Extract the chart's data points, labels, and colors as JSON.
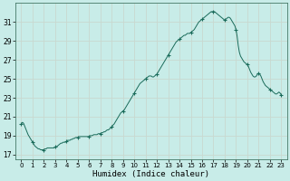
{
  "title": "",
  "xlabel": "Humidex (Indice chaleur)",
  "ylabel": "",
  "background_color": "#c8ece8",
  "grid_color": "#c8d8d0",
  "line_color": "#1a6b5a",
  "marker_color": "#1a6b5a",
  "xlim": [
    -0.5,
    23.5
  ],
  "ylim": [
    16.5,
    33.0
  ],
  "yticks": [
    17,
    19,
    21,
    23,
    25,
    27,
    29,
    31
  ],
  "xticks": [
    0,
    1,
    2,
    3,
    4,
    5,
    6,
    7,
    8,
    9,
    10,
    11,
    12,
    13,
    14,
    15,
    16,
    17,
    18,
    19,
    20,
    21,
    22,
    23
  ],
  "x": [
    0.0,
    0.1,
    0.2,
    0.3,
    0.4,
    0.5,
    0.6,
    0.7,
    0.8,
    0.9,
    1.0,
    1.1,
    1.2,
    1.3,
    1.4,
    1.5,
    1.6,
    1.7,
    1.8,
    1.9,
    2.0,
    2.1,
    2.2,
    2.3,
    2.4,
    2.5,
    2.6,
    2.7,
    2.8,
    2.9,
    3.0,
    3.1,
    3.2,
    3.3,
    3.4,
    3.5,
    3.6,
    3.7,
    3.8,
    3.9,
    4.0,
    4.1,
    4.2,
    4.3,
    4.4,
    4.5,
    4.6,
    4.7,
    4.8,
    4.9,
    5.0,
    5.1,
    5.2,
    5.3,
    5.4,
    5.5,
    5.6,
    5.7,
    5.8,
    5.9,
    6.0,
    6.1,
    6.2,
    6.3,
    6.4,
    6.5,
    6.6,
    6.7,
    6.8,
    6.9,
    7.0,
    7.1,
    7.2,
    7.3,
    7.4,
    7.5,
    7.6,
    7.7,
    7.8,
    7.9,
    8.0,
    8.1,
    8.2,
    8.3,
    8.4,
    8.5,
    8.6,
    8.7,
    8.8,
    8.9,
    9.0,
    9.1,
    9.2,
    9.3,
    9.4,
    9.5,
    9.6,
    9.7,
    9.8,
    9.9,
    10.0,
    10.1,
    10.2,
    10.3,
    10.4,
    10.5,
    10.6,
    10.7,
    10.8,
    10.9,
    11.0,
    11.1,
    11.2,
    11.3,
    11.4,
    11.5,
    11.6,
    11.7,
    11.8,
    11.9,
    12.0,
    12.1,
    12.2,
    12.3,
    12.4,
    12.5,
    12.6,
    12.7,
    12.8,
    12.9,
    13.0,
    13.1,
    13.2,
    13.3,
    13.4,
    13.5,
    13.6,
    13.7,
    13.8,
    13.9,
    14.0,
    14.1,
    14.2,
    14.3,
    14.4,
    14.5,
    14.6,
    14.7,
    14.8,
    14.9,
    15.0,
    15.1,
    15.2,
    15.3,
    15.4,
    15.5,
    15.6,
    15.7,
    15.8,
    15.9,
    16.0,
    16.1,
    16.2,
    16.3,
    16.4,
    16.5,
    16.6,
    16.7,
    16.8,
    16.9,
    17.0,
    17.1,
    17.2,
    17.3,
    17.4,
    17.5,
    17.6,
    17.7,
    17.8,
    17.9,
    18.0,
    18.1,
    18.2,
    18.3,
    18.4,
    18.5,
    18.6,
    18.7,
    18.8,
    18.9,
    19.0,
    19.1,
    19.2,
    19.3,
    19.4,
    19.5,
    19.6,
    19.7,
    19.8,
    19.9,
    20.0,
    20.1,
    20.2,
    20.3,
    20.4,
    20.5,
    20.6,
    20.7,
    20.8,
    20.9,
    21.0,
    21.1,
    21.2,
    21.3,
    21.4,
    21.5,
    21.6,
    21.7,
    21.8,
    21.9,
    22.0,
    22.1,
    22.2,
    22.3,
    22.4,
    22.5,
    22.6,
    22.7,
    22.8,
    22.9,
    23.0
  ],
  "y": [
    20.2,
    20.4,
    20.3,
    20.0,
    19.7,
    19.4,
    19.1,
    18.9,
    18.7,
    18.5,
    18.3,
    18.1,
    17.9,
    17.8,
    17.7,
    17.6,
    17.6,
    17.5,
    17.5,
    17.5,
    17.5,
    17.6,
    17.6,
    17.7,
    17.7,
    17.7,
    17.7,
    17.7,
    17.7,
    17.7,
    17.8,
    17.8,
    17.9,
    18.0,
    18.1,
    18.2,
    18.2,
    18.3,
    18.3,
    18.3,
    18.4,
    18.5,
    18.5,
    18.5,
    18.6,
    18.6,
    18.7,
    18.7,
    18.8,
    18.8,
    18.8,
    18.9,
    18.9,
    18.9,
    18.9,
    18.9,
    18.9,
    18.9,
    18.9,
    18.9,
    18.9,
    19.0,
    19.0,
    19.0,
    19.1,
    19.1,
    19.1,
    19.1,
    19.2,
    19.2,
    19.2,
    19.3,
    19.3,
    19.4,
    19.4,
    19.5,
    19.6,
    19.6,
    19.7,
    19.8,
    19.9,
    20.1,
    20.2,
    20.4,
    20.6,
    20.8,
    21.0,
    21.2,
    21.4,
    21.5,
    21.6,
    21.7,
    21.9,
    22.1,
    22.3,
    22.5,
    22.7,
    22.9,
    23.1,
    23.3,
    23.5,
    23.7,
    23.9,
    24.1,
    24.3,
    24.5,
    24.6,
    24.7,
    24.8,
    24.9,
    25.0,
    25.1,
    25.2,
    25.3,
    25.3,
    25.3,
    25.2,
    25.2,
    25.3,
    25.4,
    25.5,
    25.7,
    25.9,
    26.1,
    26.3,
    26.5,
    26.7,
    26.9,
    27.1,
    27.3,
    27.5,
    27.7,
    27.9,
    28.1,
    28.3,
    28.5,
    28.7,
    28.9,
    29.0,
    29.1,
    29.2,
    29.3,
    29.4,
    29.5,
    29.6,
    29.6,
    29.7,
    29.8,
    29.8,
    29.8,
    29.9,
    30.0,
    30.1,
    30.2,
    30.4,
    30.6,
    30.8,
    31.0,
    31.1,
    31.2,
    31.3,
    31.4,
    31.5,
    31.6,
    31.7,
    31.8,
    31.9,
    32.0,
    32.1,
    32.1,
    32.1,
    32.1,
    32.0,
    31.9,
    31.8,
    31.7,
    31.6,
    31.5,
    31.4,
    31.3,
    31.2,
    31.3,
    31.4,
    31.5,
    31.5,
    31.4,
    31.2,
    31.0,
    30.8,
    30.6,
    30.2,
    29.5,
    28.5,
    27.8,
    27.4,
    27.2,
    27.0,
    26.8,
    26.7,
    26.6,
    26.5,
    26.3,
    26.0,
    25.7,
    25.5,
    25.3,
    25.2,
    25.2,
    25.3,
    25.5,
    25.6,
    25.5,
    25.3,
    25.0,
    24.7,
    24.5,
    24.3,
    24.2,
    24.1,
    24.0,
    23.9,
    23.8,
    23.7,
    23.6,
    23.5,
    23.4,
    23.4,
    23.5,
    23.6,
    23.5,
    23.3
  ],
  "marker_x": [
    0,
    1,
    2,
    3,
    4,
    5,
    6,
    7,
    8,
    9,
    10,
    11,
    12,
    13,
    14,
    15,
    16,
    17,
    18,
    19,
    20,
    21,
    22,
    23
  ],
  "marker_y": [
    20.2,
    18.3,
    17.5,
    17.8,
    18.4,
    18.8,
    18.9,
    19.2,
    19.9,
    21.6,
    23.5,
    25.0,
    25.5,
    27.5,
    29.2,
    29.9,
    31.3,
    32.1,
    31.2,
    30.2,
    26.5,
    25.6,
    23.9,
    23.3
  ]
}
